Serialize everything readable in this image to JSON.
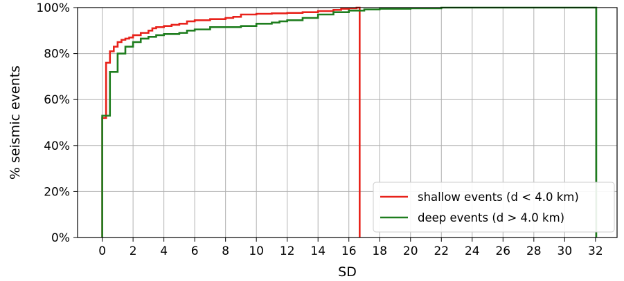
{
  "chart_data": {
    "type": "line",
    "step": "post",
    "xlabel": "SD",
    "ylabel": "% seismic events",
    "xlim": [
      -1.6,
      33.4
    ],
    "ylim": [
      0,
      100
    ],
    "xticks": [
      0,
      2,
      4,
      6,
      8,
      10,
      12,
      14,
      16,
      18,
      20,
      22,
      24,
      26,
      28,
      30,
      32
    ],
    "yticks": [
      0,
      20,
      40,
      60,
      80,
      100
    ],
    "ytick_suffix": "%",
    "grid": true,
    "legend": "lower-right",
    "series": [
      {
        "name": "shallow events (d < 4.0 km)",
        "color": "#e8221b",
        "x": [
          0,
          0,
          0.25,
          0.5,
          0.75,
          1.0,
          1.25,
          1.5,
          1.75,
          2.0,
          2.5,
          3.0,
          3.25,
          3.5,
          4.0,
          4.5,
          5.0,
          5.5,
          6.0,
          7.0,
          8.0,
          8.5,
          9.0,
          10.0,
          11.0,
          12.0,
          13.0,
          14.0,
          15.0,
          15.5,
          16.0,
          16.5,
          16.7,
          16.7
        ],
        "y": [
          0,
          52,
          76,
          81,
          83,
          85,
          86,
          86.5,
          87,
          88,
          89,
          90,
          91,
          91.5,
          92,
          92.5,
          93,
          94,
          94.5,
          95,
          95.5,
          96,
          97,
          97.3,
          97.5,
          97.7,
          98,
          98.5,
          99,
          99.5,
          99.7,
          100,
          100,
          0
        ]
      },
      {
        "name": "deep events (d > 4.0 km)",
        "color": "#1e7d1e",
        "x": [
          0,
          0,
          0.5,
          1.0,
          1.5,
          2.0,
          2.5,
          3.0,
          3.5,
          4.0,
          5.0,
          5.5,
          6.0,
          7.0,
          9.0,
          10.0,
          11.0,
          11.5,
          12.0,
          13.0,
          14.0,
          15.0,
          16.0,
          17.0,
          18.0,
          20.0,
          22.0,
          32.0,
          32.05,
          32.05
        ],
        "y": [
          0,
          53,
          72,
          80,
          83,
          85,
          86.5,
          87.3,
          88,
          88.5,
          89,
          90,
          90.5,
          91.5,
          92,
          93,
          93.5,
          94,
          94.5,
          95.5,
          97,
          98,
          98.7,
          99.2,
          99.5,
          99.7,
          100,
          100,
          100,
          0
        ]
      }
    ]
  }
}
